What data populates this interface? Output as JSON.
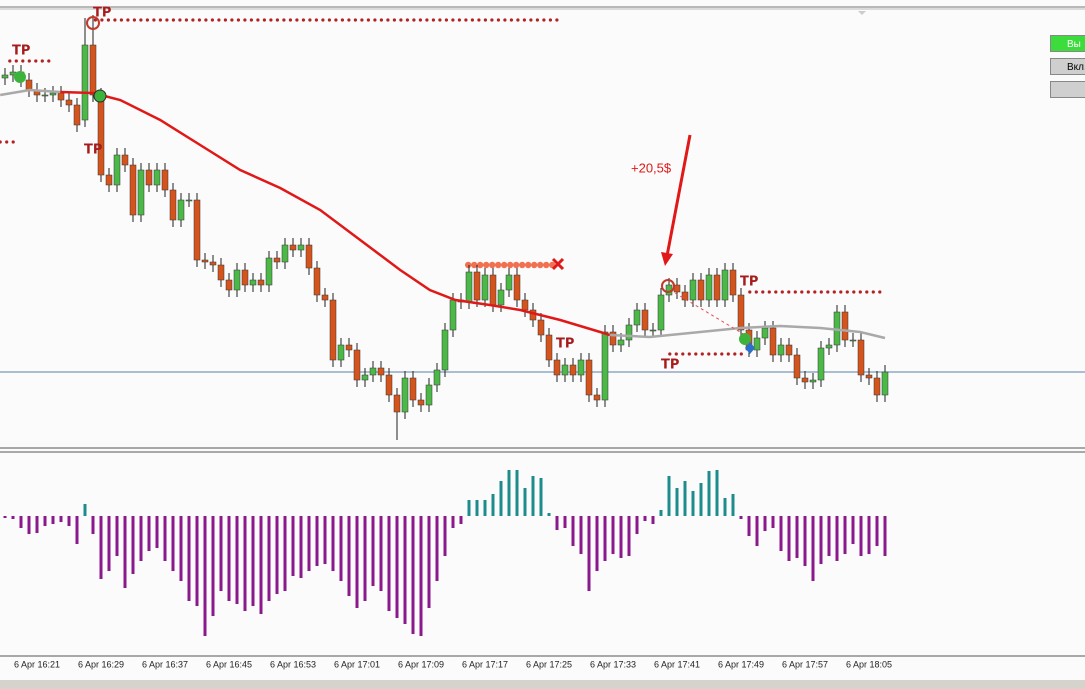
{
  "chart_data": [
    {
      "type": "candlestick",
      "categories": [
        null,
        null,
        null,
        null,
        "6 Apr 16:21",
        null,
        null,
        null,
        null,
        null,
        null,
        null,
        "6 Apr 16:29",
        null,
        null,
        null,
        null,
        null,
        null,
        null,
        "6 Apr 16:37",
        null,
        null,
        null,
        null,
        null,
        null,
        null,
        "6 Apr 16:45",
        null,
        null,
        null,
        null,
        null,
        null,
        null,
        "6 Apr 16:53",
        null,
        null,
        null,
        null,
        null,
        null,
        null,
        "6 Apr 17:01",
        null,
        null,
        null,
        null,
        null,
        null,
        null,
        "6 Apr 17:09",
        null,
        null,
        null,
        null,
        null,
        null,
        null,
        "6 Apr 17:17",
        null,
        null,
        null,
        null,
        null,
        null,
        null,
        "6 Apr 17:25",
        null,
        null,
        null,
        null,
        null,
        null,
        null,
        "6 Apr 17:33",
        null,
        null,
        null,
        null,
        null,
        null,
        null,
        "6 Apr 17:41",
        null,
        null,
        null,
        null,
        null,
        null,
        null,
        "6 Apr 17:49",
        null,
        null,
        null,
        null,
        null,
        null,
        null,
        "6 Apr 17:57",
        null,
        null,
        null,
        null,
        null,
        null,
        null,
        "6 Apr 18:05",
        null,
        null
      ],
      "open": [
        370,
        373,
        376,
        368,
        358,
        353,
        353,
        355,
        348,
        343,
        328,
        403,
        353,
        273,
        263,
        293,
        283,
        233,
        278,
        263,
        278,
        258,
        228,
        248,
        248,
        188,
        186,
        183,
        168,
        158,
        178,
        163,
        168,
        163,
        190,
        186,
        203,
        198,
        203,
        180,
        153,
        148,
        88,
        103,
        98,
        68,
        73,
        80,
        73,
        53,
        36,
        70,
        48,
        43,
        63,
        78,
        118,
        148,
        146,
        176,
        148,
        173,
        143,
        158,
        173,
        148,
        138,
        128,
        113,
        88,
        73,
        83,
        73,
        88,
        53,
        48,
        116,
        103,
        108,
        123,
        138,
        118,
        118,
        153,
        163,
        156,
        148,
        168,
        148,
        173,
        148,
        178,
        153,
        118,
        98,
        110,
        120,
        93,
        103,
        93,
        70,
        66,
        68,
        100,
        103,
        136,
        108,
        108,
        73,
        70,
        53
      ],
      "high": [
        380,
        383,
        383,
        375,
        365,
        360,
        362,
        362,
        355,
        350,
        430,
        433,
        360,
        280,
        300,
        300,
        290,
        285,
        285,
        285,
        285,
        265,
        255,
        255,
        255,
        195,
        193,
        190,
        175,
        185,
        185,
        175,
        175,
        197,
        197,
        210,
        210,
        210,
        210,
        187,
        160,
        155,
        110,
        110,
        105,
        80,
        87,
        87,
        80,
        60,
        77,
        77,
        55,
        70,
        85,
        125,
        155,
        155,
        183,
        183,
        180,
        180,
        165,
        180,
        180,
        155,
        145,
        135,
        120,
        95,
        90,
        90,
        95,
        95,
        60,
        123,
        123,
        115,
        130,
        145,
        145,
        125,
        160,
        170,
        170,
        163,
        175,
        175,
        180,
        180,
        185,
        185,
        160,
        125,
        117,
        127,
        127,
        110,
        110,
        100,
        77,
        75,
        107,
        110,
        143,
        143,
        115,
        115,
        80,
        77,
        83
      ],
      "low": [
        363,
        366,
        361,
        351,
        346,
        346,
        346,
        341,
        336,
        316,
        321,
        346,
        266,
        256,
        256,
        276,
        226,
        226,
        256,
        256,
        251,
        221,
        221,
        241,
        181,
        179,
        176,
        161,
        151,
        151,
        156,
        156,
        156,
        156,
        179,
        179,
        191,
        191,
        173,
        146,
        141,
        81,
        81,
        91,
        61,
        61,
        66,
        66,
        46,
        8,
        29,
        41,
        36,
        36,
        56,
        71,
        111,
        139,
        139,
        141,
        141,
        136,
        136,
        151,
        141,
        131,
        121,
        106,
        81,
        66,
        66,
        66,
        66,
        46,
        41,
        41,
        96,
        96,
        101,
        116,
        111,
        111,
        111,
        146,
        149,
        141,
        141,
        141,
        141,
        141,
        141,
        146,
        111,
        91,
        91,
        103,
        86,
        86,
        86,
        63,
        59,
        59,
        61,
        93,
        96,
        101,
        101,
        66,
        63,
        46,
        46
      ],
      "close": [
        373,
        376,
        368,
        358,
        353,
        353,
        355,
        348,
        343,
        323,
        403,
        353,
        273,
        263,
        293,
        283,
        233,
        278,
        263,
        278,
        258,
        228,
        248,
        248,
        188,
        186,
        183,
        168,
        158,
        178,
        163,
        168,
        163,
        190,
        186,
        203,
        198,
        203,
        180,
        153,
        148,
        88,
        103,
        98,
        68,
        73,
        80,
        73,
        53,
        36,
        70,
        48,
        43,
        63,
        78,
        118,
        148,
        146,
        176,
        148,
        173,
        143,
        158,
        173,
        148,
        138,
        128,
        113,
        88,
        73,
        83,
        73,
        88,
        53,
        48,
        116,
        103,
        108,
        123,
        138,
        118,
        118,
        153,
        163,
        156,
        148,
        168,
        148,
        173,
        148,
        178,
        153,
        118,
        98,
        110,
        120,
        93,
        103,
        93,
        70,
        66,
        68,
        100,
        103,
        136,
        108,
        108,
        73,
        70,
        53,
        76
      ],
      "up_color": "#4cb848",
      "down_color": "#d4541e",
      "ylim": [
        0,
        440
      ],
      "lines": [
        {
          "color": "#a9a9a9",
          "x": [
            -0.6,
            3.1,
            6.9
          ],
          "values": [
            353,
            358,
            356
          ]
        },
        {
          "color": "#e01818",
          "x": [
            6.9,
            11,
            14.4,
            19.4,
            24.4,
            29.4,
            34.4,
            39.4,
            44.4,
            49.4,
            53.1,
            56.3,
            60.6,
            64.4,
            69.4,
            74.4,
            75.6
          ],
          "values": [
            356,
            355,
            348,
            328,
            303,
            278,
            260,
            238,
            208,
            178,
            158,
            148,
            143,
            138,
            128,
            116,
            113
          ]
        },
        {
          "color": "#a9a9a9",
          "x": [
            75.6,
            80.6,
            86.9,
            91.9,
            96.9,
            101.9,
            106.9,
            110
          ],
          "values": [
            113,
            111,
            116,
            120,
            122,
            120,
            116,
            110
          ]
        }
      ],
      "levels": [
        {
          "value": 428,
          "from": 11.3,
          "to": 69.4,
          "color": "#b22222"
        },
        {
          "value": 387,
          "from": 0.6,
          "to": 5.6,
          "color": "#b22222"
        },
        {
          "value": 306,
          "from": -0.6,
          "to": 1.3,
          "color": "#b22222"
        },
        {
          "value": 183,
          "from": 57.9,
          "to": 68.8,
          "color": "#f07050"
        },
        {
          "value": 156,
          "from": 93.1,
          "to": 109.4,
          "color": "#b22222"
        },
        {
          "value": 94,
          "from": 83.1,
          "to": 92.5,
          "color": "#b22222"
        }
      ],
      "current_price": 76,
      "current_color": "#5b7fa8",
      "annotations": [
        "TP",
        "TP",
        "TP",
        "TP",
        "TP",
        "TP",
        "+20,5$"
      ]
    },
    {
      "type": "bar",
      "values": [
        -2,
        -3,
        -12,
        -18,
        -17,
        -10,
        -8,
        -6,
        -10,
        -28,
        12,
        -18,
        -63,
        -55,
        -40,
        -72,
        -58,
        -45,
        -35,
        -32,
        -45,
        -55,
        -65,
        -85,
        -90,
        -120,
        -100,
        -75,
        -85,
        -88,
        -95,
        -90,
        -98,
        -85,
        -78,
        -75,
        -60,
        -62,
        -55,
        -50,
        -48,
        -55,
        -65,
        -80,
        -92,
        -85,
        -70,
        -75,
        -95,
        -102,
        -108,
        -118,
        -120,
        -92,
        -65,
        -40,
        -12,
        -8,
        16,
        16,
        16,
        22,
        35,
        46,
        46,
        28,
        40,
        38,
        3,
        -14,
        -12,
        -30,
        -38,
        -75,
        -55,
        -45,
        -38,
        -42,
        -40,
        -18,
        -5,
        -8,
        6,
        40,
        28,
        35,
        25,
        33,
        45,
        46,
        18,
        22,
        -3,
        -20,
        -30,
        -15,
        -12,
        -35,
        -45,
        -42,
        -50,
        -65,
        -48,
        -40,
        -45,
        -38,
        -28,
        -40,
        -38,
        -30,
        -40
      ],
      "positive_color": "#1e8c8c",
      "negative_color": "#8a1a8c",
      "ylim": [
        -140,
        64
      ]
    }
  ],
  "buttons": [
    "Вы",
    "Вкл.I"
  ]
}
